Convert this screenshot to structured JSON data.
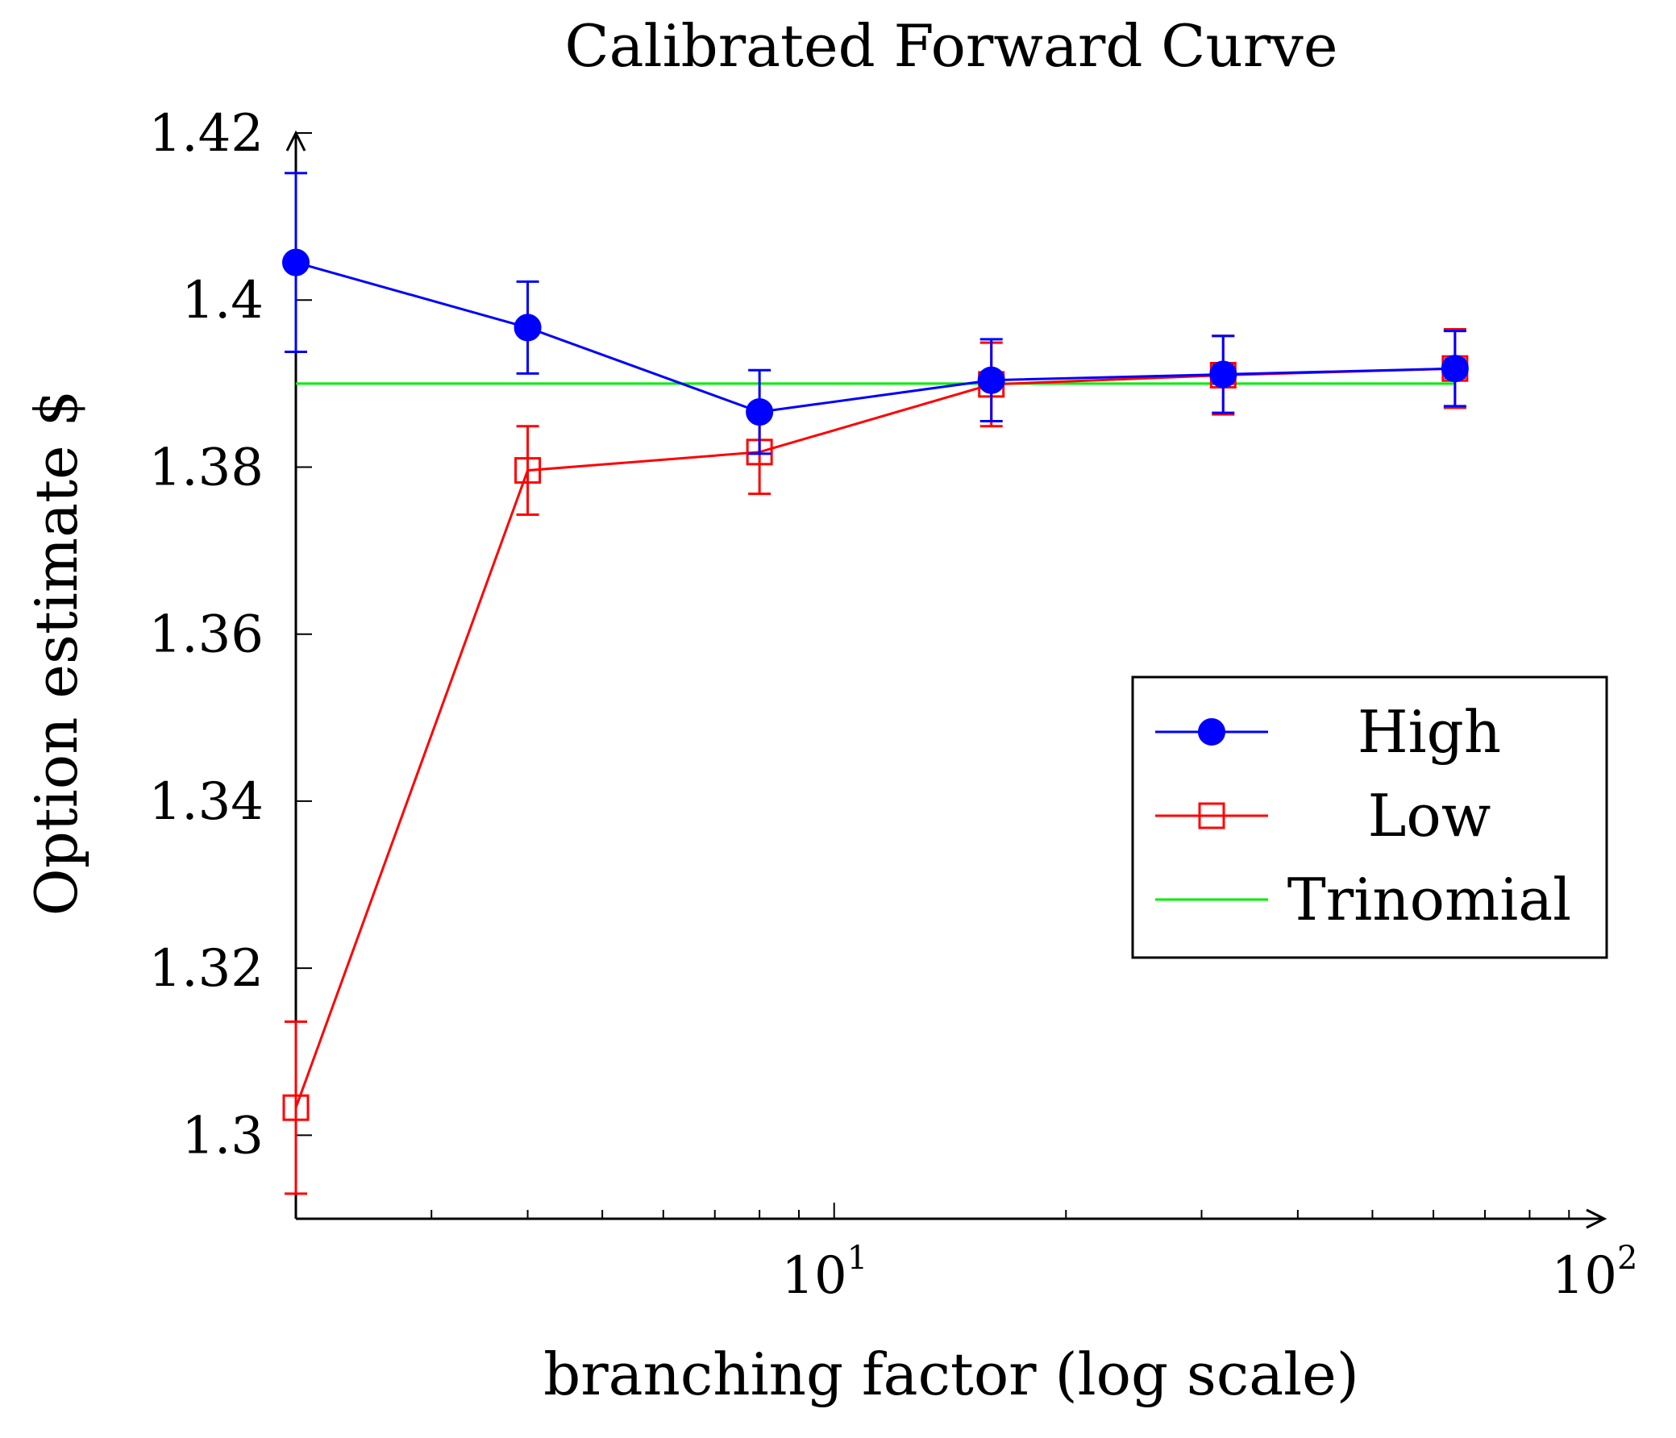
{
  "chart_data": {
    "type": "line",
    "title": "Calibrated Forward Curve",
    "xlabel": "branching factor (log scale)",
    "ylabel": "Option estimate $",
    "xscale": "log",
    "xlim": [
      2,
      100
    ],
    "ylim": [
      1.29,
      1.42
    ],
    "x_ticks": [
      {
        "value": 10,
        "base": "10",
        "exp": "1"
      },
      {
        "value": 100,
        "base": "10",
        "exp": "2"
      }
    ],
    "y_ticks": [
      {
        "value": 1.3,
        "label": "1.3"
      },
      {
        "value": 1.32,
        "label": "1.32"
      },
      {
        "value": 1.34,
        "label": "1.34"
      },
      {
        "value": 1.36,
        "label": "1.36"
      },
      {
        "value": 1.38,
        "label": "1.38"
      },
      {
        "value": 1.4,
        "label": "1.4"
      },
      {
        "value": 1.42,
        "label": "1.42"
      }
    ],
    "legend_position": "middle-right",
    "series": [
      {
        "name": "High",
        "color": "#0000ff",
        "marker": "filled-circle",
        "x": [
          2,
          4,
          8,
          16,
          32,
          64
        ],
        "y": [
          1.4045,
          1.3967,
          1.3866,
          1.3904,
          1.3911,
          1.3918
        ],
        "err": [
          0.0107,
          0.0055,
          0.005,
          0.0049,
          0.0046,
          0.0045
        ]
      },
      {
        "name": "Low",
        "color": "#ff0000",
        "marker": "open-square",
        "x": [
          2,
          4,
          8,
          16,
          32,
          64
        ],
        "y": [
          1.3033,
          1.3796,
          1.3818,
          1.3899,
          1.391,
          1.3918
        ],
        "err": [
          0.0103,
          0.0053,
          0.005,
          0.005,
          0.0047,
          0.0047
        ]
      },
      {
        "name": "Trinomial",
        "color": "#00ee00",
        "marker": "none",
        "x": [
          2,
          64
        ],
        "y": [
          1.39,
          1.39
        ]
      }
    ]
  }
}
